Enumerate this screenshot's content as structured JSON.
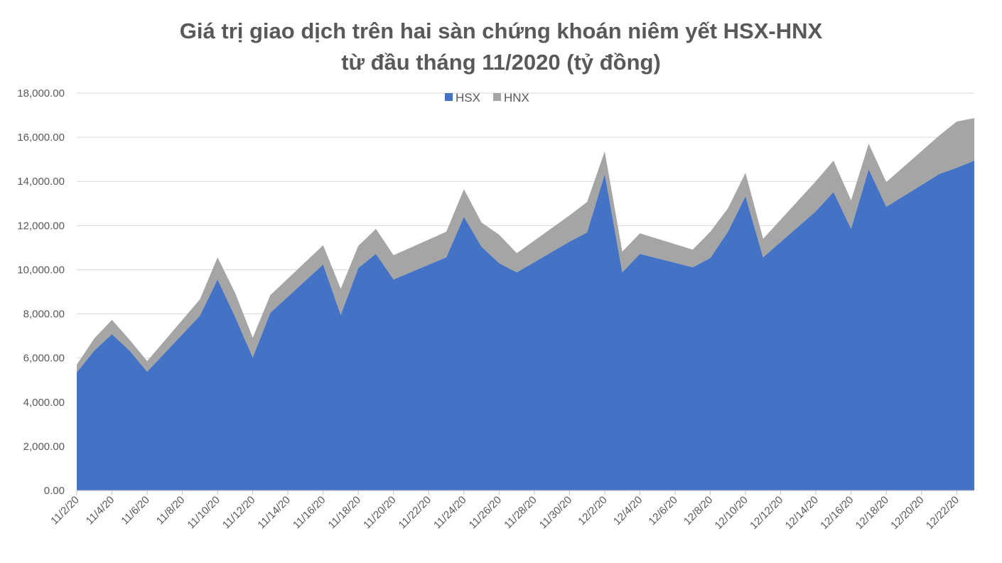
{
  "chart_data": {
    "type": "area",
    "title": [
      "Giá trị giao dịch trên hai sàn chứng khoán niêm yết HSX-HNX",
      "từ đầu tháng 11/2020 (tỷ đồng)"
    ],
    "stacked": true,
    "x": [
      "11/2/20",
      "11/3/20",
      "11/4/20",
      "11/5/20",
      "11/6/20",
      "11/9/20",
      "11/10/20",
      "11/11/20",
      "11/12/20",
      "11/13/20",
      "11/16/20",
      "11/17/20",
      "11/18/20",
      "11/19/20",
      "11/20/20",
      "11/23/20",
      "11/24/20",
      "11/25/20",
      "11/26/20",
      "11/27/20",
      "11/30/20",
      "12/1/20",
      "12/2/20",
      "12/3/20",
      "12/4/20",
      "12/7/20",
      "12/8/20",
      "12/9/20",
      "12/10/20",
      "12/11/20",
      "12/14/20",
      "12/15/20",
      "12/16/20",
      "12/17/20",
      "12/18/20",
      "12/21/20",
      "12/22/20",
      "12/23/20"
    ],
    "series": [
      {
        "name": "HSX",
        "color": "#4472c4",
        "values": [
          5350,
          6340,
          7080,
          6340,
          5380,
          7920,
          9560,
          7860,
          6020,
          8050,
          10240,
          7950,
          10080,
          10720,
          9560,
          10560,
          12400,
          11040,
          10300,
          9880,
          11270,
          11690,
          14330,
          9880,
          10720,
          10110,
          10530,
          11720,
          13330,
          10560,
          12650,
          13520,
          11850,
          14550,
          12850,
          14330,
          14620,
          14940
        ]
      },
      {
        "name": "HNX",
        "color": "#a5a5a5",
        "values": [
          350,
          550,
          650,
          490,
          480,
          740,
          1000,
          1090,
          900,
          800,
          870,
          1190,
          1000,
          1130,
          1100,
          1160,
          1250,
          1100,
          1290,
          870,
          1190,
          1380,
          1030,
          940,
          930,
          800,
          1190,
          1060,
          1060,
          840,
          1360,
          1420,
          1290,
          1160,
          1120,
          1740,
          2090,
          1930
        ]
      }
    ],
    "xlim": [
      "11/2/20",
      "12/23/20"
    ],
    "xticks": [
      "11/2/20",
      "11/4/20",
      "11/6/20",
      "11/8/20",
      "11/10/20",
      "11/12/20",
      "11/14/20",
      "11/16/20",
      "11/18/20",
      "11/20/20",
      "11/22/20",
      "11/24/20",
      "11/26/20",
      "11/28/20",
      "11/30/20",
      "12/2/20",
      "12/4/20",
      "12/6/20",
      "12/8/20",
      "12/10/20",
      "12/12/20",
      "12/14/20",
      "12/16/20",
      "12/18/20",
      "12/20/20",
      "12/22/20"
    ],
    "ylim": [
      0,
      18000
    ],
    "yticks": [
      {
        "value": 0,
        "label": "0.00"
      },
      {
        "value": 2000,
        "label": "2,000.00"
      },
      {
        "value": 4000,
        "label": "4,000.00"
      },
      {
        "value": 6000,
        "label": "6,000.00"
      },
      {
        "value": 8000,
        "label": "8,000.00"
      },
      {
        "value": 10000,
        "label": "10,000.00"
      },
      {
        "value": 12000,
        "label": "12,000.00"
      },
      {
        "value": 14000,
        "label": "14,000.00"
      },
      {
        "value": 16000,
        "label": "16,000.00"
      },
      {
        "value": 18000,
        "label": "18,000.00"
      }
    ],
    "grid": true,
    "legend": "top"
  }
}
